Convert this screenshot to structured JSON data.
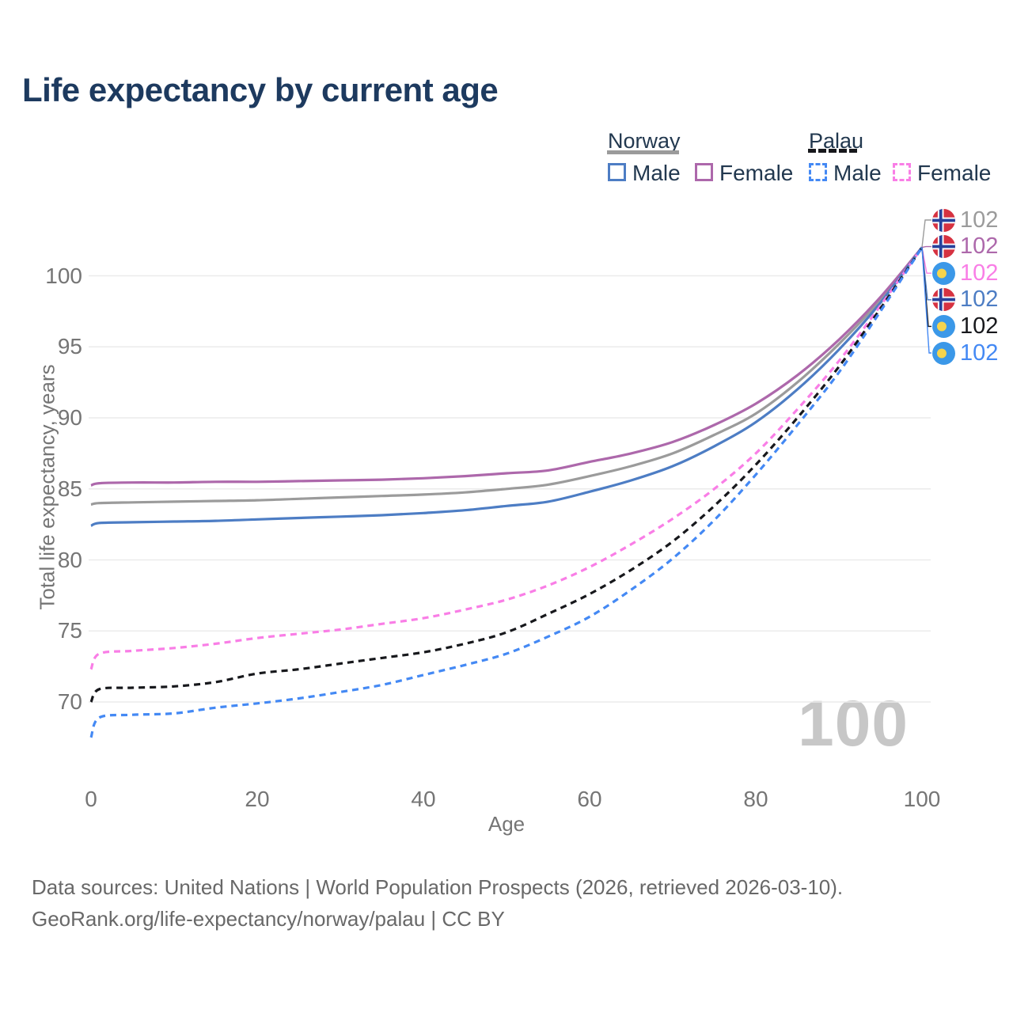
{
  "page": {
    "title": "Life expectancy by current age",
    "watermark": "100"
  },
  "legend": {
    "groups": [
      {
        "country": "Norway",
        "underline": {
          "color": "#9b9b9b",
          "style": "solid"
        },
        "items": [
          {
            "label": "Male",
            "color": "#4d7dc4",
            "dashed": false
          },
          {
            "label": "Female",
            "color": "#ad68ab",
            "dashed": false
          }
        ]
      },
      {
        "country": "Palau",
        "underline": {
          "color": "#17181c",
          "style": "dashed"
        },
        "items": [
          {
            "label": "Male",
            "color": "#4489f4",
            "dashed": true
          },
          {
            "label": "Female",
            "color": "#f97ee6",
            "dashed": true
          }
        ]
      }
    ]
  },
  "chart_data": {
    "type": "line",
    "title": "Life expectancy by current age",
    "xlabel": "Age",
    "ylabel": "Total life expectancy, years",
    "x_ticks": [
      0,
      20,
      40,
      60,
      80,
      100
    ],
    "y_ticks": [
      70,
      75,
      80,
      85,
      90,
      95,
      100
    ],
    "xlim": [
      0,
      100
    ],
    "ylim": [
      67,
      103
    ],
    "grid": true,
    "grid_color": "#ebebeb",
    "tick_color": "#757575",
    "legend_position": "top-right",
    "ages": [
      0,
      1,
      5,
      10,
      15,
      20,
      25,
      30,
      35,
      40,
      45,
      50,
      55,
      60,
      65,
      70,
      75,
      80,
      85,
      90,
      95,
      100
    ],
    "series": [
      {
        "id": "norway_total",
        "name": "Norway — Both sexes",
        "country": "Norway",
        "sex": "Both",
        "color": "#9b9b9b",
        "dashed": false,
        "flag": "norway",
        "end_label": "102",
        "values": [
          83.9,
          84.0,
          84.05,
          84.1,
          84.15,
          84.2,
          84.3,
          84.4,
          84.5,
          84.6,
          84.75,
          85.0,
          85.3,
          85.9,
          86.6,
          87.5,
          88.8,
          90.3,
          92.5,
          95.2,
          98.3,
          102
        ]
      },
      {
        "id": "norway_female",
        "name": "Norway — Female",
        "country": "Norway",
        "sex": "Female",
        "color": "#ad68ab",
        "dashed": false,
        "flag": "norway",
        "end_label": "102",
        "values": [
          85.25,
          85.4,
          85.45,
          85.45,
          85.5,
          85.5,
          85.55,
          85.6,
          85.65,
          85.75,
          85.9,
          86.1,
          86.3,
          86.9,
          87.5,
          88.3,
          89.5,
          91.0,
          93.0,
          95.5,
          98.5,
          102
        ]
      },
      {
        "id": "norway_male",
        "name": "Norway — Male",
        "country": "Norway",
        "sex": "Male",
        "color": "#4d7dc4",
        "dashed": false,
        "flag": "norway",
        "end_label": "102",
        "values": [
          82.4,
          82.6,
          82.65,
          82.7,
          82.75,
          82.85,
          82.95,
          83.05,
          83.15,
          83.3,
          83.5,
          83.8,
          84.1,
          84.8,
          85.6,
          86.6,
          88.0,
          89.7,
          92.0,
          94.8,
          98.1,
          102
        ]
      },
      {
        "id": "palau_female",
        "name": "Palau — Female",
        "country": "Palau",
        "sex": "Female",
        "color": "#f97ee6",
        "dashed": true,
        "flag": "palau",
        "end_label": "102",
        "values": [
          72.3,
          73.4,
          73.6,
          73.8,
          74.1,
          74.5,
          74.8,
          75.1,
          75.5,
          75.9,
          76.5,
          77.2,
          78.2,
          79.5,
          81.1,
          82.9,
          85.0,
          87.5,
          90.6,
          94.0,
          97.9,
          102
        ]
      },
      {
        "id": "palau_total",
        "name": "Palau — Both sexes",
        "country": "Palau",
        "sex": "Both",
        "color": "#17181c",
        "dashed": true,
        "flag": "palau",
        "end_label": "102",
        "values": [
          70.0,
          70.9,
          71.0,
          71.1,
          71.4,
          72.0,
          72.3,
          72.7,
          73.1,
          73.5,
          74.1,
          74.9,
          76.2,
          77.6,
          79.3,
          81.3,
          83.8,
          86.7,
          90.0,
          93.6,
          97.7,
          102
        ]
      },
      {
        "id": "palau_male",
        "name": "Palau — Male",
        "country": "Palau",
        "sex": "Male",
        "color": "#4489f4",
        "dashed": true,
        "flag": "palau",
        "end_label": "102",
        "values": [
          67.5,
          68.9,
          69.1,
          69.2,
          69.6,
          69.9,
          70.25,
          70.7,
          71.2,
          71.9,
          72.6,
          73.4,
          74.6,
          76.0,
          77.9,
          80.1,
          82.8,
          86.0,
          89.5,
          93.2,
          97.5,
          102
        ]
      }
    ],
    "end_labels_order": [
      "norway_total",
      "norway_female",
      "palau_female",
      "norway_male",
      "palau_total",
      "palau_male"
    ]
  },
  "footer": {
    "line1": "Data sources: United Nations | World Population Prospects (2026, retrieved 2026-03-10).",
    "line2": "GeoRank.org/life-expectancy/norway/palau | CC BY"
  }
}
